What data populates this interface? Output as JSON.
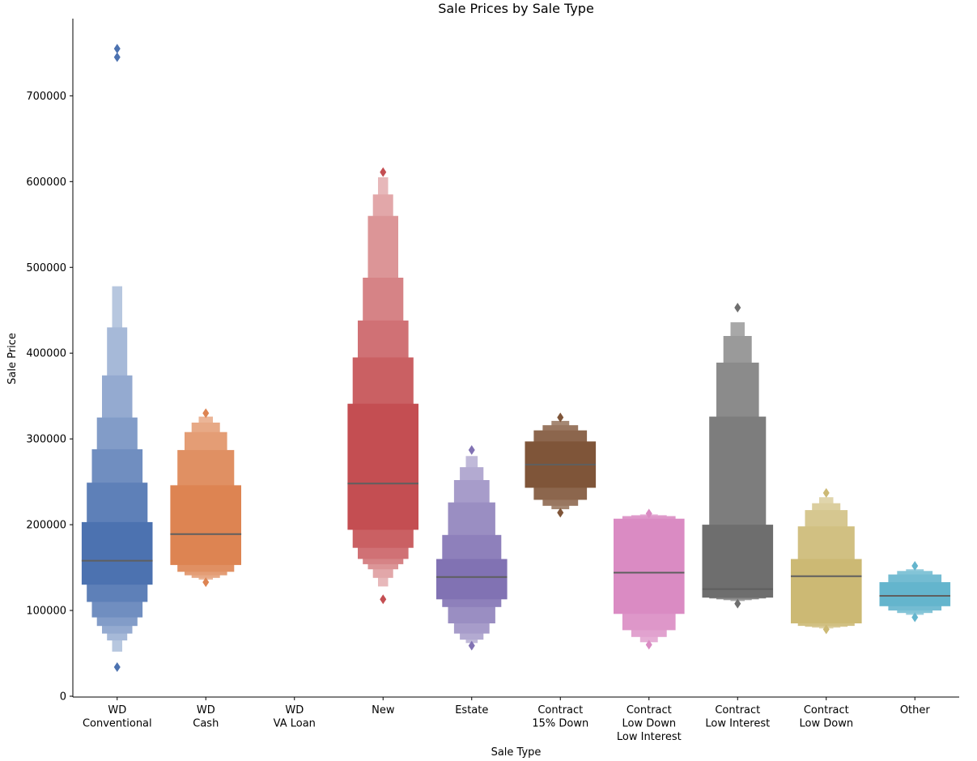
{
  "chart_data": {
    "type": "boxen",
    "title": "Sale Prices by Sale Type",
    "xlabel": "Sale Type",
    "ylabel": "Sale Price",
    "ylim": [
      0,
      790000
    ],
    "yticks": [
      0,
      100000,
      200000,
      300000,
      400000,
      500000,
      600000,
      700000
    ],
    "grid": false,
    "legend": "none",
    "median_color": "#5f5f5f",
    "categories": [
      {
        "label": [
          "WD",
          "Conventional"
        ],
        "color": "#4c72b0",
        "median": 158000,
        "boxes": [
          [
            130000,
            203000
          ],
          [
            110000,
            249000
          ],
          [
            92000,
            288000
          ],
          [
            82000,
            325000
          ],
          [
            73000,
            374000
          ],
          [
            65000,
            430000
          ],
          [
            52000,
            478000
          ]
        ],
        "outliers": [
          34000,
          745000,
          755000
        ]
      },
      {
        "label": [
          "WD",
          "Cash"
        ],
        "color": "#dd8452",
        "median": 189000,
        "boxes": [
          [
            153000,
            246000
          ],
          [
            145000,
            287000
          ],
          [
            141000,
            308000
          ],
          [
            138000,
            319000
          ],
          [
            136000,
            326000
          ]
        ],
        "outliers": [
          133000,
          330000
        ]
      },
      {
        "label": [
          "WD",
          "VA Loan"
        ],
        "color": "#55a868",
        "median": null,
        "boxes": [],
        "outliers": []
      },
      {
        "label": [
          "New"
        ],
        "color": "#c44e52",
        "median": 248000,
        "boxes": [
          [
            194000,
            341000
          ],
          [
            173000,
            395000
          ],
          [
            160000,
            438000
          ],
          [
            154000,
            488000
          ],
          [
            148000,
            560000
          ],
          [
            138000,
            585000
          ],
          [
            128000,
            605000
          ]
        ],
        "outliers": [
          113000,
          611000
        ]
      },
      {
        "label": [
          "Estate"
        ],
        "color": "#8172b3",
        "median": 139000,
        "boxes": [
          [
            113000,
            160000
          ],
          [
            104000,
            188000
          ],
          [
            85000,
            226000
          ],
          [
            73000,
            252000
          ],
          [
            66000,
            267000
          ],
          [
            62000,
            280000
          ]
        ],
        "outliers": [
          59000,
          287000
        ]
      },
      {
        "label": [
          "Contract",
          "15% Down"
        ],
        "color": "#7f5539",
        "median": 270000,
        "boxes": [
          [
            243000,
            297000
          ],
          [
            229000,
            310000
          ],
          [
            222000,
            316000
          ],
          [
            218000,
            321000
          ]
        ],
        "outliers": [
          214000,
          325000
        ]
      },
      {
        "label": [
          "Contract",
          "Low Down",
          "Low Interest"
        ],
        "color": "#da8bc3",
        "median": 144000,
        "boxes": [
          [
            96000,
            207000
          ],
          [
            77000,
            210000
          ],
          [
            69000,
            211000
          ],
          [
            63000,
            212000
          ]
        ],
        "outliers": [
          60000,
          213000
        ]
      },
      {
        "label": [
          "Contract",
          "Low Interest"
        ],
        "color": "#6e6e6e",
        "median": 125000,
        "boxes": [
          [
            115000,
            200000
          ],
          [
            114000,
            326000
          ],
          [
            113000,
            389000
          ],
          [
            112000,
            420000
          ],
          [
            111000,
            436000
          ]
        ],
        "outliers": [
          108000,
          453000
        ]
      },
      {
        "label": [
          "Contract",
          "Low Down"
        ],
        "color": "#ccb974",
        "median": 140000,
        "boxes": [
          [
            85000,
            160000
          ],
          [
            82000,
            198000
          ],
          [
            81000,
            217000
          ],
          [
            80000,
            225000
          ],
          [
            79000,
            232000
          ]
        ],
        "outliers": [
          78000,
          237000
        ]
      },
      {
        "label": [
          "Other"
        ],
        "color": "#64b5cd",
        "median": 117000,
        "boxes": [
          [
            105000,
            133000
          ],
          [
            100000,
            142000
          ],
          [
            97000,
            146000
          ],
          [
            95000,
            148000
          ]
        ],
        "outliers": [
          92000,
          152000
        ]
      }
    ]
  }
}
